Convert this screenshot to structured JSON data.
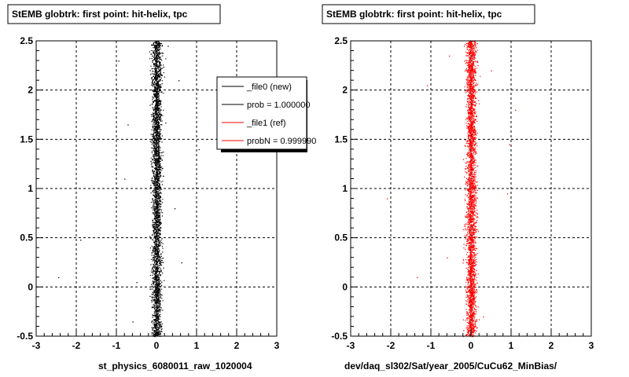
{
  "chart_data": [
    {
      "type": "scatter",
      "title": "StEMB globtrk: first point: hit-helix, tpc",
      "xlabel": "st_physics_6080011_raw_1020004",
      "ylabel": "",
      "xlim": [
        -3,
        3
      ],
      "ylim": [
        -0.5,
        2.5
      ],
      "x_ticks": [
        "-3",
        "-2",
        "-1",
        "0",
        "1",
        "2",
        "3"
      ],
      "y_ticks": [
        "-0.5",
        "0",
        "0.5",
        "1",
        "1.5",
        "2",
        "2.5"
      ],
      "grid": true,
      "marker_color": "#000000",
      "distribution": {
        "x_center": 0.0,
        "x_width": 0.12,
        "y_range": [
          -0.5,
          2.5
        ],
        "density": "dense"
      },
      "outliers": [
        {
          "x": -2.45,
          "y": 0.1
        },
        {
          "x": -1.9,
          "y": 0.48
        },
        {
          "x": -0.95,
          "y": 2.3
        },
        {
          "x": -0.72,
          "y": 1.65
        },
        {
          "x": -0.5,
          "y": 0.05
        },
        {
          "x": 0.28,
          "y": 2.45
        },
        {
          "x": 0.55,
          "y": 2.1
        },
        {
          "x": 0.45,
          "y": 0.8
        },
        {
          "x": 0.62,
          "y": 0.25
        },
        {
          "x": 1.05,
          "y": 1.4
        },
        {
          "x": -0.8,
          "y": 1.1
        },
        {
          "x": -0.6,
          "y": -0.35
        }
      ],
      "legend": {
        "position": "top-right",
        "entries": [
          {
            "label": "_file0 (new)",
            "color": "#000000"
          },
          {
            "label": "prob = 1.000000",
            "color": "#000000"
          },
          {
            "label": "_file1 (ref)",
            "color": "#ff0000"
          },
          {
            "label": "probN = 0.999990",
            "color": "#ff0000"
          }
        ]
      }
    },
    {
      "type": "scatter",
      "title": "StEMB globtrk: first point: hit-helix, tpc",
      "xlabel": "dev/daq_sl302/Sat/year_2005/CuCu62_MinBias/",
      "ylabel": "",
      "xlim": [
        -3,
        3
      ],
      "ylim": [
        -0.5,
        2.5
      ],
      "x_ticks": [
        "-3",
        "-2",
        "-1",
        "0",
        "1",
        "2",
        "3"
      ],
      "y_ticks": [
        "-0.5",
        "0",
        "0.5",
        "1",
        "1.5",
        "2",
        "2.5"
      ],
      "grid": true,
      "marker_color": "#ff0000",
      "distribution": {
        "x_center": 0.0,
        "x_width": 0.12,
        "y_range": [
          -0.5,
          2.5
        ],
        "density": "dense"
      },
      "outliers": [
        {
          "x": -1.1,
          "y": 2.05
        },
        {
          "x": -0.55,
          "y": 2.35
        },
        {
          "x": 0.5,
          "y": 2.2
        },
        {
          "x": -0.2,
          "y": 1.3
        },
        {
          "x": 0.95,
          "y": 1.45
        },
        {
          "x": -0.6,
          "y": 0.3
        },
        {
          "x": 0.9,
          "y": 0.95
        },
        {
          "x": -1.35,
          "y": 0.1
        },
        {
          "x": 0.3,
          "y": -0.3
        },
        {
          "x": 1.1,
          "y": 1.8
        },
        {
          "x": -2.1,
          "y": 0.9
        }
      ]
    }
  ]
}
